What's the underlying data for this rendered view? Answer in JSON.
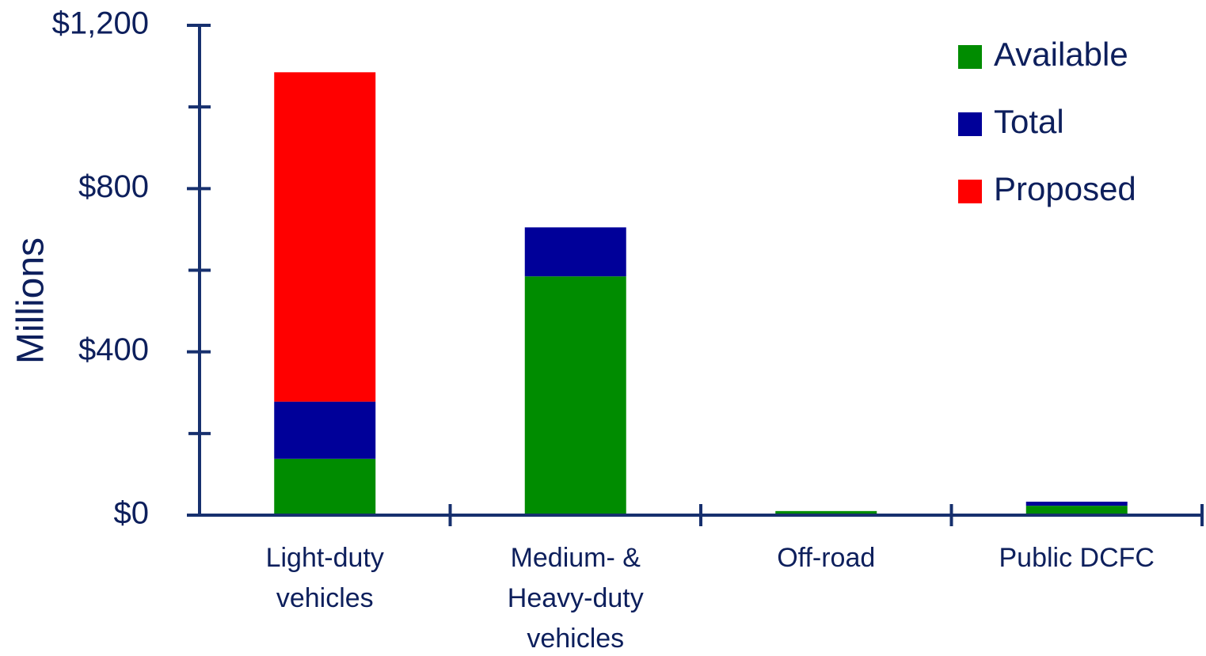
{
  "chart_data": {
    "type": "stacked_bar",
    "y_axis_label": "Millions",
    "categories": [
      [
        "Light-duty",
        "vehicles"
      ],
      [
        "Medium- &",
        "Heavy-duty",
        "vehicles"
      ],
      [
        "Off-road"
      ],
      [
        "Public DCFC"
      ]
    ],
    "series": [
      {
        "name": "Available",
        "color": "#008c00",
        "values": [
          138,
          585,
          10,
          23
        ]
      },
      {
        "name": "Total",
        "color": "#000099",
        "values": [
          140,
          120,
          0,
          10
        ]
      },
      {
        "name": "Proposed",
        "color": "#ff0000",
        "values": [
          807,
          0,
          0,
          0
        ]
      }
    ],
    "ylim": [
      0,
      1200
    ],
    "yticks": [
      {
        "value": 0,
        "label": "$0"
      },
      {
        "value": 400,
        "label": "$400"
      },
      {
        "value": 800,
        "label": "$800"
      },
      {
        "value": 1200,
        "label": "$1,200"
      }
    ],
    "yminor_ticks": [
      200,
      600,
      1000
    ],
    "legend": "top-right"
  }
}
